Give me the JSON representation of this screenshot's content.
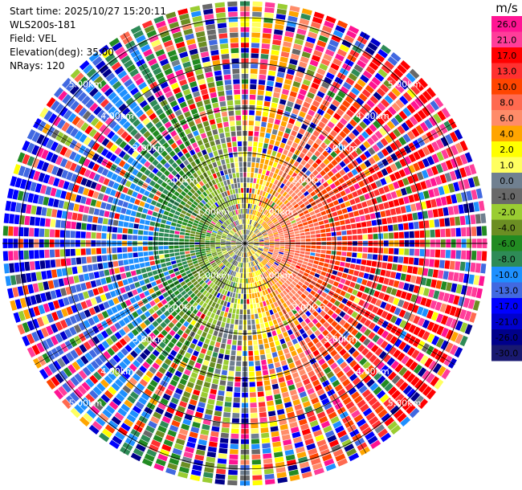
{
  "header": {
    "start_time": "Start time: 2025/10/27 15:20:11",
    "instrument": "WLS200s-181",
    "field": "Field: VEL",
    "elevation": "Elevation(deg): 35.00",
    "nrays": "NRays: 120"
  },
  "colorbar": {
    "unit": "m/s",
    "ticks": [
      "26.0",
      "21.0",
      "17.0",
      "13.0",
      "10.0",
      "8.0",
      "6.0",
      "4.0",
      "2.0",
      "1.0",
      "0.0",
      "-1.0",
      "-2.0",
      "-4.0",
      "-6.0",
      "-8.0",
      "-10.0",
      "-13.0",
      "-17.0",
      "-21.0",
      "-26.0",
      "-30.0"
    ],
    "colors": [
      "#ff1493",
      "#ff3d9a",
      "#ff0000",
      "#ff3030",
      "#ff4500",
      "#ff6a50",
      "#ff8c69",
      "#ffa500",
      "#ffff00",
      "#ffff60",
      "#708090",
      "#696969",
      "#9acd32",
      "#6b8e23",
      "#228b22",
      "#2e8b57",
      "#1e90ff",
      "#4169e1",
      "#0000ff",
      "#0000cd",
      "#00008b",
      "#191970"
    ]
  },
  "chart_data": {
    "type": "ppi",
    "field": "VEL",
    "units": "m/s",
    "elevation_deg": 35.0,
    "n_rays": 120,
    "max_range_km": 5.0,
    "range_ring_labels": [
      "1.00km",
      "2.00km",
      "3.00km",
      "4.00km",
      "5.00km"
    ],
    "description_of_pattern": {
      "west": "negative (blue, about -13 to -21 m/s)",
      "east": "positive (orange/red/pink, about +8 to +26 m/s)",
      "near_center": "near zero (yellow/grey/green, about -4 to +4 m/s)",
      "outer_ranges": "noisy, all colours"
    }
  }
}
